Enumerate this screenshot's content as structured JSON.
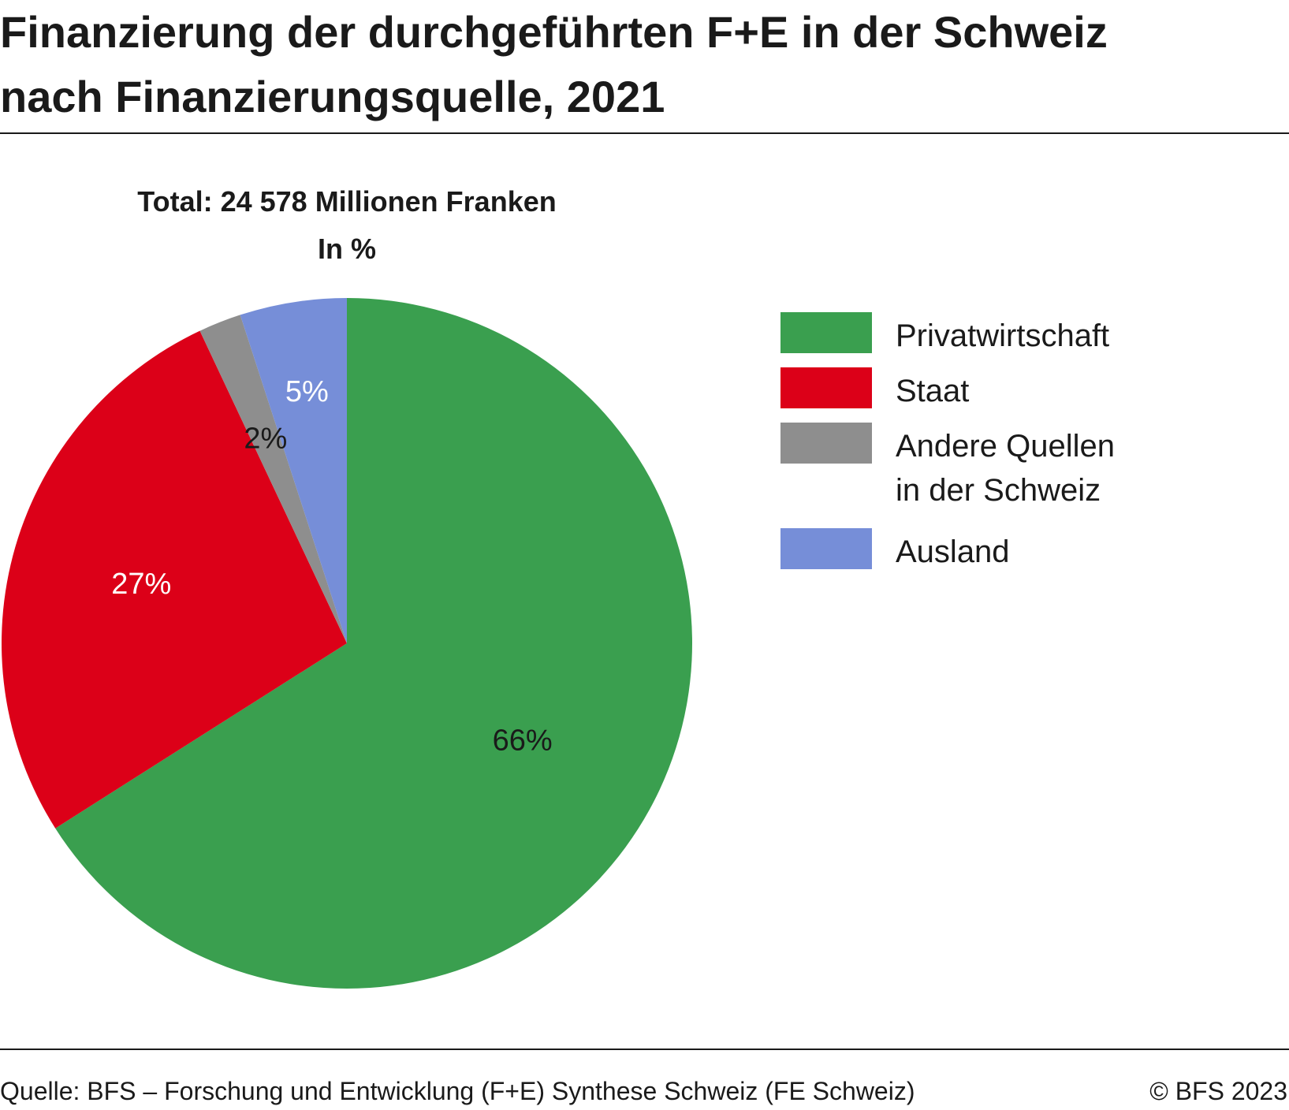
{
  "title": {
    "line1": "Finanzierung der durchgeführten F+E in der Schweiz",
    "line2": "nach Finanzierungsquelle, 2021"
  },
  "chart_data": {
    "type": "pie",
    "subtitle": "Total: 24 578 Millionen Franken",
    "unit_label": "In %",
    "slices": [
      {
        "name": "Privatwirtschaft",
        "value": 66,
        "label": "66%",
        "color": "#3a9f4f",
        "label_color": "#1a1a1a"
      },
      {
        "name": "Staat",
        "value": 27,
        "label": "27%",
        "color": "#dc0018",
        "label_color": "#ffffff"
      },
      {
        "name": "Andere Quellen in der Schweiz",
        "value": 2,
        "label": "2%",
        "color": "#8e8e8e",
        "label_color": "#1a1a1a"
      },
      {
        "name": "Ausland",
        "value": 5,
        "label": "5%",
        "color": "#768ed8",
        "label_color": "#ffffff"
      }
    ],
    "legend": {
      "placement": "right",
      "items": [
        {
          "lines": [
            "Privatwirtschaft"
          ],
          "color": "#3a9f4f"
        },
        {
          "lines": [
            "Staat"
          ],
          "color": "#dc0018"
        },
        {
          "lines": [
            "Andere Quellen",
            "in der Schweiz"
          ],
          "color": "#8e8e8e"
        },
        {
          "lines": [
            "Ausland"
          ],
          "color": "#768ed8"
        }
      ]
    }
  },
  "footer": {
    "source": "Quelle: BFS – Forschung und Entwicklung (F+E) Synthese Schweiz (FE Schweiz)",
    "copyright": "© BFS 2023"
  }
}
